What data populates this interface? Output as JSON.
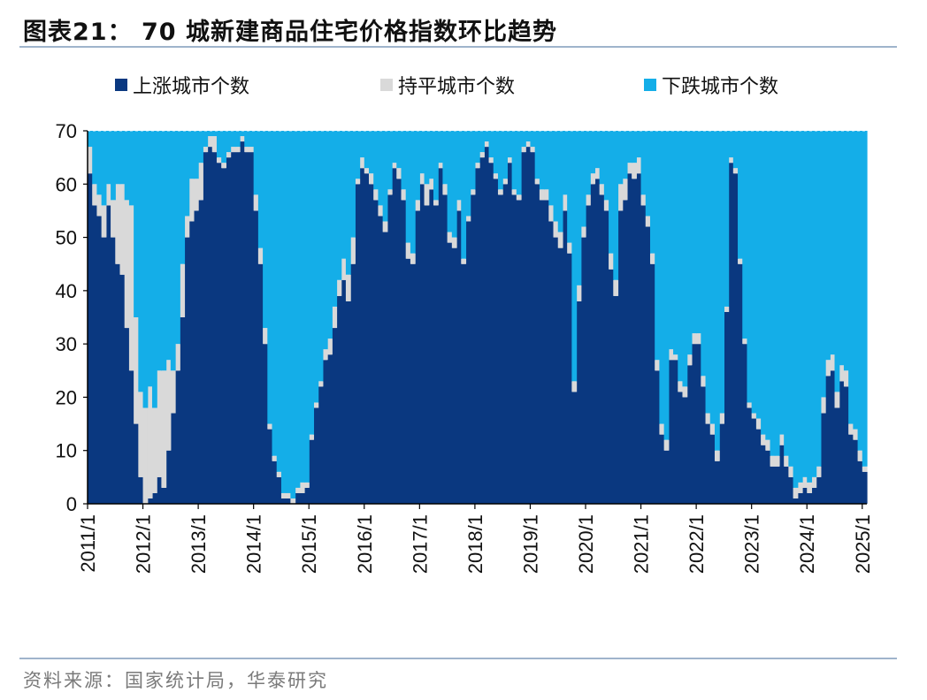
{
  "header": {
    "title": "图表21：  70 城新建商品住宅价格指数环比趋势"
  },
  "footer": {
    "source": "资料来源：国家统计局，华泰研究"
  },
  "colors": {
    "up": "#0a3880",
    "flat": "#d9d9d9",
    "down": "#14aee8",
    "axis": "#000000",
    "rule": "#9fb4cc"
  },
  "chart_data": {
    "type": "area",
    "stacked": true,
    "title": "70 城新建商品住宅价格指数环比趋势",
    "xlabel": "",
    "ylabel": "",
    "ylim": [
      0,
      70
    ],
    "yticks": [
      0,
      10,
      20,
      30,
      40,
      50,
      60,
      70
    ],
    "xticks": [
      "2011/1",
      "2012/1",
      "2013/1",
      "2014/1",
      "2015/1",
      "2016/1",
      "2017/1",
      "2018/1",
      "2019/1",
      "2020/1",
      "2021/1",
      "2022/1",
      "2023/1",
      "2024/1",
      "2025/1"
    ],
    "grid": false,
    "legend": "top",
    "x_start": "2011/1",
    "frequency": "monthly",
    "series": [
      {
        "name": "上涨城市个数",
        "color": "#0a3880",
        "values": [
          62,
          56,
          54,
          50,
          56,
          50,
          45,
          43,
          33,
          25,
          15,
          5,
          0,
          1,
          2,
          5,
          3,
          10,
          17,
          25,
          35,
          50,
          53,
          55,
          57,
          66,
          67,
          66,
          64,
          63,
          65,
          66,
          66,
          68,
          66,
          66,
          55,
          45,
          30,
          14,
          8,
          5,
          1,
          1,
          0,
          2,
          2,
          3,
          12,
          18,
          22,
          27,
          28,
          33,
          39,
          42,
          38,
          45,
          60,
          63,
          62,
          60,
          57,
          54,
          51,
          58,
          63,
          61,
          57,
          46,
          45,
          55,
          60,
          56,
          59,
          56,
          63,
          58,
          49,
          48,
          55,
          45,
          53,
          58,
          63,
          65,
          67,
          64,
          61,
          58,
          60,
          64,
          58,
          57,
          66,
          67,
          66,
          60,
          57,
          57,
          53,
          50,
          48,
          55,
          47,
          21,
          38,
          50,
          56,
          60,
          61,
          58,
          55,
          44,
          39,
          55,
          57,
          62,
          61,
          62,
          56,
          52,
          45,
          25,
          13,
          10,
          27,
          27,
          21,
          20,
          26,
          30,
          30,
          22,
          15,
          13,
          8,
          15,
          36,
          64,
          62,
          45,
          30,
          18,
          16,
          14,
          11,
          10,
          7,
          7,
          11,
          7,
          5,
          1,
          2,
          3,
          2,
          3,
          5,
          17,
          24,
          25,
          18,
          23,
          22,
          13,
          12,
          8,
          6
        ]
      },
      {
        "name": "持平城市个数",
        "color": "#d9d9d9",
        "values": [
          5,
          4,
          4,
          6,
          4,
          7,
          15,
          17,
          24,
          31,
          20,
          16,
          18,
          21,
          16,
          20,
          22,
          17,
          8,
          5,
          10,
          4,
          8,
          6,
          7,
          1,
          2,
          3,
          1,
          1,
          1,
          1,
          1,
          1,
          1,
          1,
          3,
          3,
          3,
          1,
          1,
          1,
          1,
          1,
          1,
          1,
          2,
          1,
          1,
          1,
          1,
          2,
          3,
          4,
          3,
          4,
          5,
          5,
          1,
          2,
          1,
          2,
          2,
          2,
          2,
          1,
          1,
          2,
          2,
          3,
          2,
          2,
          2,
          4,
          2,
          1,
          1,
          2,
          2,
          2,
          2,
          1,
          1,
          1,
          1,
          1,
          1,
          1,
          1,
          1,
          1,
          1,
          1,
          1,
          1,
          1,
          1,
          1,
          2,
          2,
          3,
          3,
          3,
          3,
          2,
          2,
          3,
          2,
          2,
          2,
          2,
          2,
          2,
          3,
          3,
          5,
          4,
          2,
          3,
          3,
          2,
          2,
          2,
          2,
          2,
          2,
          2,
          1,
          2,
          2,
          2,
          2,
          2,
          2,
          2,
          2,
          2,
          2,
          1,
          1,
          1,
          1,
          1,
          1,
          1,
          2,
          2,
          2,
          2,
          2,
          2,
          2,
          2,
          2,
          2,
          2,
          2,
          2,
          2,
          3,
          3,
          3,
          3,
          3,
          3,
          2,
          2,
          2,
          1
        ]
      },
      {
        "name": "下跌城市个数",
        "color": "#14aee8",
        "values": [
          3,
          10,
          12,
          14,
          10,
          13,
          10,
          10,
          13,
          14,
          35,
          49,
          52,
          48,
          52,
          45,
          45,
          43,
          45,
          40,
          25,
          16,
          9,
          9,
          6,
          3,
          1,
          1,
          5,
          6,
          4,
          3,
          3,
          1,
          3,
          3,
          12,
          22,
          37,
          55,
          61,
          64,
          68,
          68,
          69,
          67,
          66,
          66,
          57,
          51,
          47,
          41,
          39,
          33,
          28,
          24,
          27,
          20,
          9,
          5,
          7,
          8,
          11,
          14,
          17,
          11,
          6,
          7,
          11,
          21,
          23,
          13,
          8,
          10,
          9,
          13,
          6,
          10,
          19,
          20,
          13,
          24,
          16,
          11,
          6,
          4,
          2,
          5,
          8,
          11,
          9,
          5,
          11,
          12,
          3,
          2,
          3,
          9,
          11,
          11,
          14,
          17,
          19,
          12,
          21,
          47,
          29,
          18,
          12,
          8,
          7,
          10,
          13,
          23,
          28,
          10,
          9,
          6,
          6,
          5,
          12,
          16,
          23,
          43,
          55,
          58,
          41,
          42,
          47,
          48,
          42,
          38,
          38,
          46,
          53,
          55,
          60,
          53,
          33,
          5,
          7,
          24,
          39,
          51,
          53,
          54,
          57,
          58,
          61,
          61,
          57,
          61,
          63,
          67,
          66,
          65,
          66,
          65,
          63,
          50,
          43,
          42,
          49,
          44,
          45,
          55,
          56,
          60,
          63
        ]
      }
    ]
  }
}
